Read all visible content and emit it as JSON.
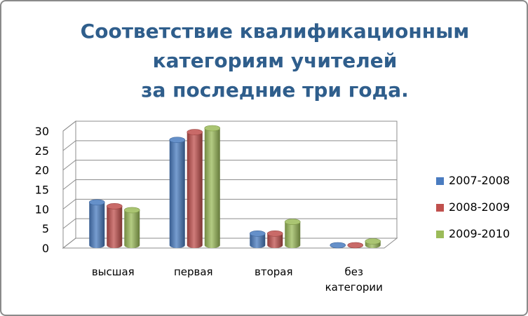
{
  "title_lines": [
    "Соответствие квалификационным",
    "категориям учителей",
    "за последние три года."
  ],
  "chart_data": {
    "type": "bar",
    "title": "Соответствие квалификационным категориям учителей за последние три года.",
    "categories": [
      [
        "высшая"
      ],
      [
        "первая"
      ],
      [
        "вторая"
      ],
      [
        "без",
        "категории"
      ]
    ],
    "series": [
      {
        "name": "2007-2008",
        "color": "#4a7cc0",
        "values": [
          11,
          27,
          3,
          0
        ]
      },
      {
        "name": "2008-2009",
        "color": "#c0504d",
        "values": [
          10,
          29,
          3,
          0
        ]
      },
      {
        "name": "2009-2010",
        "color": "#9bbb59",
        "values": [
          9,
          30,
          6,
          1
        ]
      }
    ],
    "yticks": [
      "0",
      "5",
      "10",
      "15",
      "20",
      "25",
      "30"
    ],
    "ylim": [
      0,
      30
    ],
    "grid": true,
    "legend_position": "right"
  }
}
